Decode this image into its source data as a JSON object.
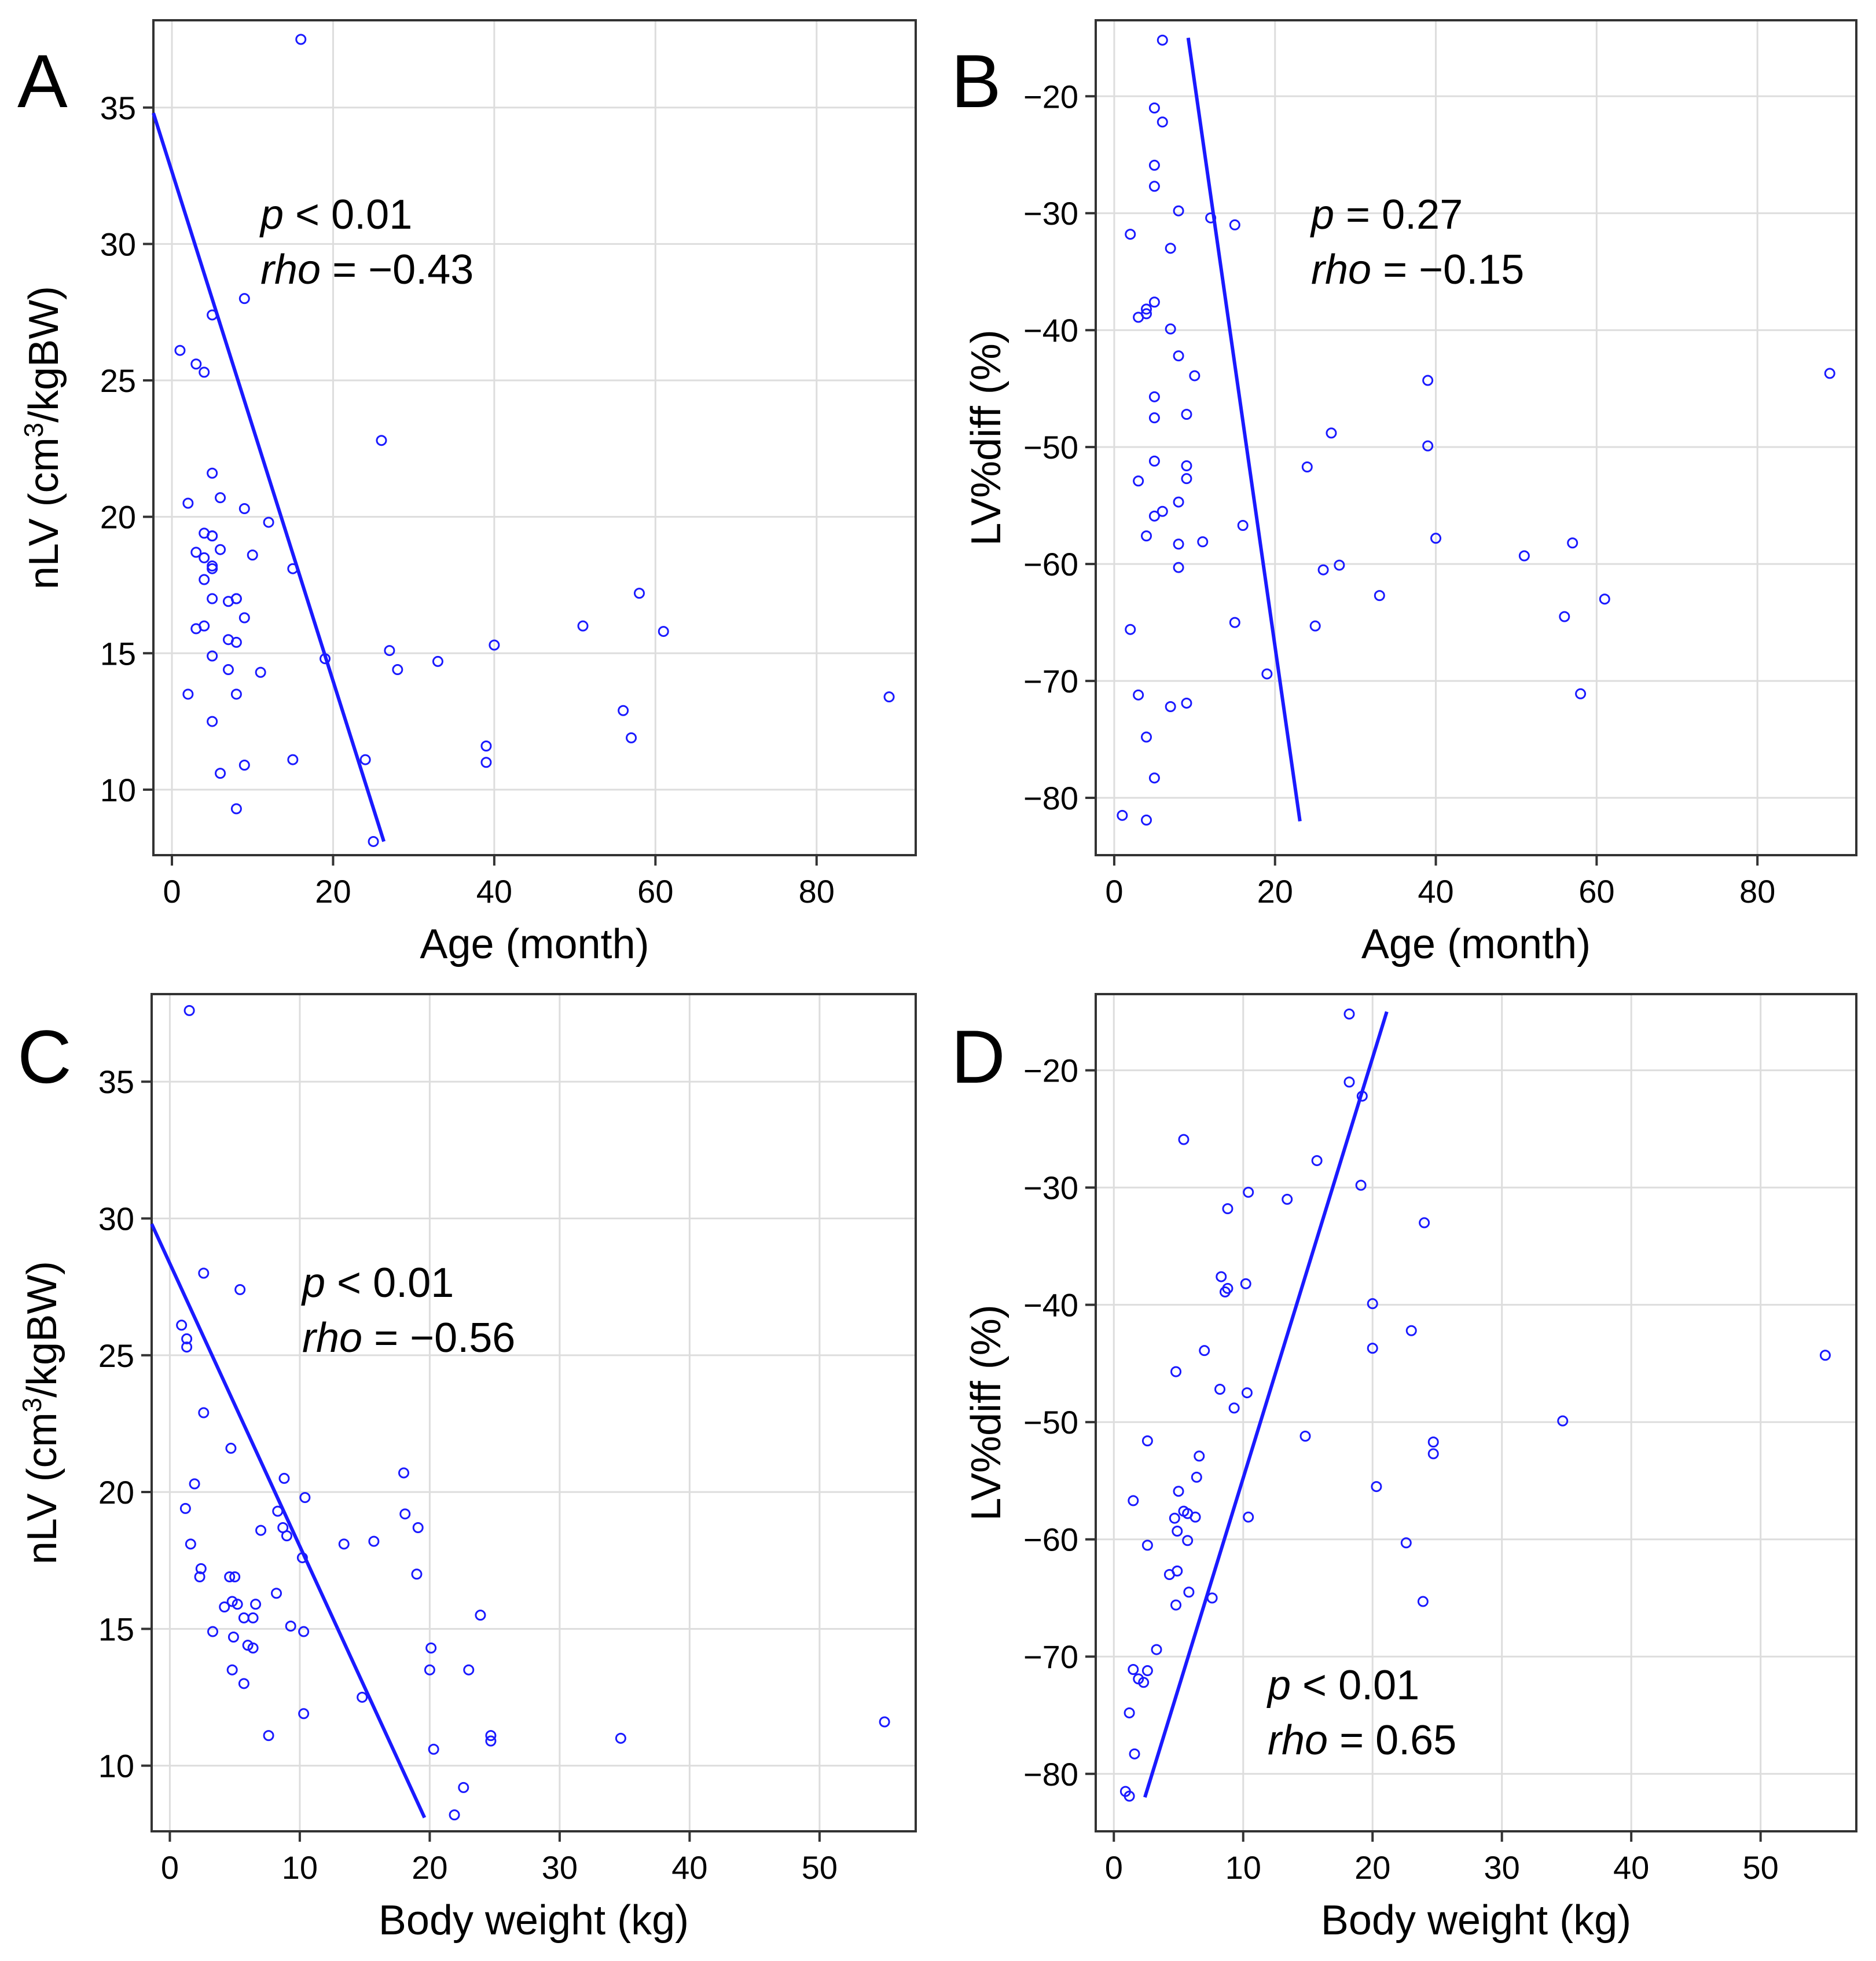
{
  "figure": {
    "line_color": "#1a1aff",
    "grid_color": "#dddddd"
  },
  "chart_data": [
    {
      "panel": "A",
      "type": "scatter",
      "xlabel": "Age (month)",
      "ylabel_main": "nLV (cm",
      "ylabel_sup": "3",
      "ylabel_end": "/kgBW)",
      "xlim": [
        -2.3,
        92.3
      ],
      "ylim": [
        7.6,
        38.2
      ],
      "xticks": [
        0,
        20,
        40,
        60,
        80
      ],
      "yticks": [
        10,
        15,
        20,
        25,
        30,
        35
      ],
      "stats": {
        "p_label": "p",
        "p_value": " < 0.01",
        "rho_label": "rho",
        "rho_value": " = −0.43"
      },
      "fit_line": {
        "x": [
          -2.3,
          26.3
        ],
        "y": [
          34.8,
          8.1
        ]
      },
      "points": [
        [
          1,
          26.1
        ],
        [
          2,
          20.5
        ],
        [
          2,
          13.5
        ],
        [
          3,
          18.7
        ],
        [
          3,
          15.9
        ],
        [
          3,
          25.6
        ],
        [
          4,
          25.3
        ],
        [
          4,
          19.4
        ],
        [
          4,
          18.5
        ],
        [
          4,
          17.7
        ],
        [
          4,
          16.0
        ],
        [
          5,
          21.6
        ],
        [
          5,
          19.3
        ],
        [
          5,
          19.3
        ],
        [
          5,
          18.2
        ],
        [
          5,
          18.1
        ],
        [
          5,
          17.0
        ],
        [
          5,
          14.9
        ],
        [
          5,
          12.5
        ],
        [
          5,
          27.4
        ],
        [
          6,
          20.7
        ],
        [
          6,
          18.8
        ],
        [
          6,
          10.6
        ],
        [
          7,
          16.9
        ],
        [
          7,
          15.5
        ],
        [
          7,
          14.4
        ],
        [
          8,
          17.0
        ],
        [
          8,
          17.0
        ],
        [
          8,
          15.4
        ],
        [
          8,
          13.5
        ],
        [
          8,
          9.3
        ],
        [
          9,
          28.0
        ],
        [
          9,
          20.3
        ],
        [
          9,
          16.3
        ],
        [
          9,
          10.9
        ],
        [
          10,
          18.6
        ],
        [
          11,
          14.3
        ],
        [
          12,
          19.8
        ],
        [
          15,
          18.1
        ],
        [
          15,
          11.1
        ],
        [
          16,
          37.5
        ],
        [
          19,
          14.8
        ],
        [
          24,
          11.1
        ],
        [
          25,
          8.1
        ],
        [
          26,
          22.8
        ],
        [
          27,
          15.1
        ],
        [
          28,
          14.4
        ],
        [
          33,
          14.7
        ],
        [
          39,
          11.6
        ],
        [
          39,
          11.0
        ],
        [
          40,
          15.3
        ],
        [
          51,
          16.0
        ],
        [
          56,
          12.9
        ],
        [
          57,
          11.9
        ],
        [
          58,
          17.2
        ],
        [
          61,
          15.8
        ],
        [
          89,
          13.4
        ]
      ]
    },
    {
      "panel": "B",
      "type": "scatter",
      "xlabel": "Age (month)",
      "ylabel_main": "LV%diff (%)",
      "ylabel_sup": "",
      "ylabel_end": "",
      "xlim": [
        -2.3,
        92.3
      ],
      "ylim": [
        -84.9,
        -13.5
      ],
      "xticks": [
        0,
        20,
        40,
        60,
        80
      ],
      "yticks": [
        -80,
        -70,
        -60,
        -50,
        -40,
        -30,
        -20
      ],
      "stats": {
        "p_label": "p",
        "p_value": " = 0.27",
        "rho_label": "rho",
        "rho_value": " = −0.15"
      },
      "fit_line": {
        "x": [
          9.2,
          23.1
        ],
        "y": [
          -15.0,
          -82.0
        ]
      },
      "points": [
        [
          1,
          -81.5
        ],
        [
          2,
          -31.8
        ],
        [
          2,
          -65.6
        ],
        [
          3,
          -52.9
        ],
        [
          3,
          -38.9
        ],
        [
          3,
          -71.2
        ],
        [
          4,
          -38.6
        ],
        [
          4,
          -38.2
        ],
        [
          4,
          -57.6
        ],
        [
          4,
          -74.8
        ],
        [
          4,
          -81.9
        ],
        [
          5,
          -21.0
        ],
        [
          5,
          -25.9
        ],
        [
          5,
          -27.7
        ],
        [
          5,
          -37.6
        ],
        [
          5,
          -45.7
        ],
        [
          5,
          -47.5
        ],
        [
          5,
          -51.2
        ],
        [
          5,
          -55.9
        ],
        [
          5,
          -78.3
        ],
        [
          6,
          -22.2
        ],
        [
          6,
          -15.2
        ],
        [
          6,
          -55.5
        ],
        [
          7,
          -33.0
        ],
        [
          7,
          -39.9
        ],
        [
          7,
          -72.2
        ],
        [
          8,
          -29.8
        ],
        [
          8,
          -42.2
        ],
        [
          8,
          -54.7
        ],
        [
          8,
          -58.3
        ],
        [
          8,
          -60.3
        ],
        [
          9,
          -47.2
        ],
        [
          9,
          -51.6
        ],
        [
          9,
          -52.7
        ],
        [
          9,
          -71.9
        ],
        [
          10,
          -43.9
        ],
        [
          11,
          -58.1
        ],
        [
          12,
          -30.4
        ],
        [
          15,
          -31.0
        ],
        [
          15,
          -65.0
        ],
        [
          16,
          -56.7
        ],
        [
          19,
          -69.4
        ],
        [
          24,
          -51.7
        ],
        [
          25,
          -65.3
        ],
        [
          26,
          -60.5
        ],
        [
          27,
          -48.8
        ],
        [
          28,
          -60.1
        ],
        [
          33,
          -62.7
        ],
        [
          39,
          -44.3
        ],
        [
          39,
          -49.9
        ],
        [
          40,
          -57.8
        ],
        [
          51,
          -59.3
        ],
        [
          56,
          -64.5
        ],
        [
          57,
          -58.2
        ],
        [
          58,
          -71.1
        ],
        [
          61,
          -63.0
        ],
        [
          89,
          -43.7
        ]
      ]
    },
    {
      "panel": "C",
      "type": "scatter",
      "xlabel": "Body weight (kg)",
      "ylabel_main": "nLV (cm",
      "ylabel_sup": "3",
      "ylabel_end": "/kgBW)",
      "xlim": [
        -1.4,
        57.4
      ],
      "ylim": [
        7.6,
        38.2
      ],
      "xticks": [
        0,
        10,
        20,
        30,
        40,
        50
      ],
      "yticks": [
        10,
        15,
        20,
        25,
        30,
        35
      ],
      "stats": {
        "p_label": "p",
        "p_value": " < 0.01",
        "rho_label": "rho",
        "rho_value": " = −0.56"
      },
      "fit_line": {
        "x": [
          -1.4,
          19.6
        ],
        "y": [
          29.8,
          8.1
        ]
      },
      "points": [
        [
          1.5,
          37.6
        ],
        [
          0.9,
          26.1
        ],
        [
          1.3,
          25.6
        ],
        [
          1.3,
          25.3
        ],
        [
          2.6,
          28.0
        ],
        [
          5.4,
          27.4
        ],
        [
          2.6,
          22.9
        ],
        [
          1.9,
          20.3
        ],
        [
          1.2,
          19.4
        ],
        [
          1.6,
          18.1
        ],
        [
          2.4,
          17.2
        ],
        [
          2.3,
          16.9
        ],
        [
          3.3,
          14.9
        ],
        [
          4.2,
          15.8
        ],
        [
          4.7,
          21.6
        ],
        [
          4.6,
          16.9
        ],
        [
          5.0,
          16.9
        ],
        [
          4.8,
          16.0
        ],
        [
          5.2,
          15.9
        ],
        [
          4.9,
          14.7
        ],
        [
          5.7,
          15.4
        ],
        [
          6.4,
          15.4
        ],
        [
          6.6,
          15.9
        ],
        [
          6.0,
          14.4
        ],
        [
          6.4,
          14.3
        ],
        [
          5.7,
          13.0
        ],
        [
          4.8,
          13.5
        ],
        [
          7.0,
          18.6
        ],
        [
          7.6,
          11.1
        ],
        [
          8.2,
          16.3
        ],
        [
          8.3,
          19.3
        ],
        [
          8.7,
          18.7
        ],
        [
          8.8,
          20.5
        ],
        [
          9.0,
          18.4
        ],
        [
          9.3,
          15.1
        ],
        [
          10.2,
          17.6
        ],
        [
          10.4,
          19.8
        ],
        [
          10.3,
          14.9
        ],
        [
          10.3,
          11.9
        ],
        [
          13.4,
          18.1
        ],
        [
          15.7,
          18.2
        ],
        [
          14.8,
          12.5
        ],
        [
          18.0,
          20.7
        ],
        [
          18.1,
          19.2
        ],
        [
          19.1,
          18.7
        ],
        [
          19.0,
          17.0
        ],
        [
          20.1,
          14.3
        ],
        [
          20.0,
          13.5
        ],
        [
          20.3,
          10.6
        ],
        [
          21.9,
          8.2
        ],
        [
          22.6,
          9.2
        ],
        [
          23.0,
          13.5
        ],
        [
          23.9,
          15.5
        ],
        [
          24.7,
          11.1
        ],
        [
          24.7,
          10.9
        ],
        [
          34.7,
          11.0
        ],
        [
          55.0,
          11.6
        ]
      ]
    },
    {
      "panel": "D",
      "type": "scatter",
      "xlabel": "Body weight (kg)",
      "ylabel_main": "LV%diff (%)",
      "ylabel_sup": "",
      "ylabel_end": "",
      "xlim": [
        -1.4,
        57.4
      ],
      "ylim": [
        -84.9,
        -13.5
      ],
      "xticks": [
        0,
        10,
        20,
        30,
        40,
        50
      ],
      "yticks": [
        -80,
        -70,
        -60,
        -50,
        -40,
        -30,
        -20
      ],
      "stats": {
        "p_label": "p",
        "p_value": " < 0.01",
        "rho_label": "rho",
        "rho_value": " = 0.65"
      },
      "fit_line": {
        "x": [
          2.4,
          21.1
        ],
        "y": [
          -82.0,
          -15.0
        ]
      },
      "points": [
        [
          18.2,
          -15.2
        ],
        [
          18.2,
          -21.0
        ],
        [
          19.2,
          -22.2
        ],
        [
          5.4,
          -25.9
        ],
        [
          15.7,
          -27.7
        ],
        [
          19.1,
          -29.8
        ],
        [
          10.4,
          -30.4
        ],
        [
          13.4,
          -31.0
        ],
        [
          8.8,
          -31.8
        ],
        [
          24.0,
          -33.0
        ],
        [
          8.3,
          -37.6
        ],
        [
          10.2,
          -38.2
        ],
        [
          8.6,
          -38.9
        ],
        [
          8.8,
          -38.6
        ],
        [
          20.0,
          -39.9
        ],
        [
          23.0,
          -42.2
        ],
        [
          20.0,
          -43.7
        ],
        [
          7.0,
          -43.9
        ],
        [
          55.0,
          -44.3
        ],
        [
          4.8,
          -45.7
        ],
        [
          8.2,
          -47.2
        ],
        [
          10.3,
          -47.5
        ],
        [
          9.3,
          -48.8
        ],
        [
          34.7,
          -49.9
        ],
        [
          14.8,
          -51.2
        ],
        [
          2.6,
          -51.6
        ],
        [
          24.7,
          -51.7
        ],
        [
          24.7,
          -52.7
        ],
        [
          6.6,
          -52.9
        ],
        [
          6.4,
          -54.7
        ],
        [
          20.3,
          -55.5
        ],
        [
          5.0,
          -55.9
        ],
        [
          1.5,
          -56.7
        ],
        [
          5.4,
          -57.6
        ],
        [
          4.7,
          -58.2
        ],
        [
          6.3,
          -58.1
        ],
        [
          10.4,
          -58.1
        ],
        [
          5.7,
          -57.8
        ],
        [
          4.9,
          -59.3
        ],
        [
          5.7,
          -60.1
        ],
        [
          22.6,
          -60.3
        ],
        [
          2.6,
          -60.5
        ],
        [
          4.9,
          -62.7
        ],
        [
          4.3,
          -63.0
        ],
        [
          5.8,
          -64.5
        ],
        [
          23.9,
          -65.3
        ],
        [
          7.6,
          -65.0
        ],
        [
          4.8,
          -65.6
        ],
        [
          3.3,
          -69.4
        ],
        [
          1.5,
          -71.1
        ],
        [
          2.6,
          -71.2
        ],
        [
          1.9,
          -71.9
        ],
        [
          2.3,
          -72.2
        ],
        [
          1.2,
          -74.8
        ],
        [
          1.6,
          -78.3
        ],
        [
          0.9,
          -81.5
        ],
        [
          1.2,
          -81.9
        ]
      ]
    }
  ]
}
